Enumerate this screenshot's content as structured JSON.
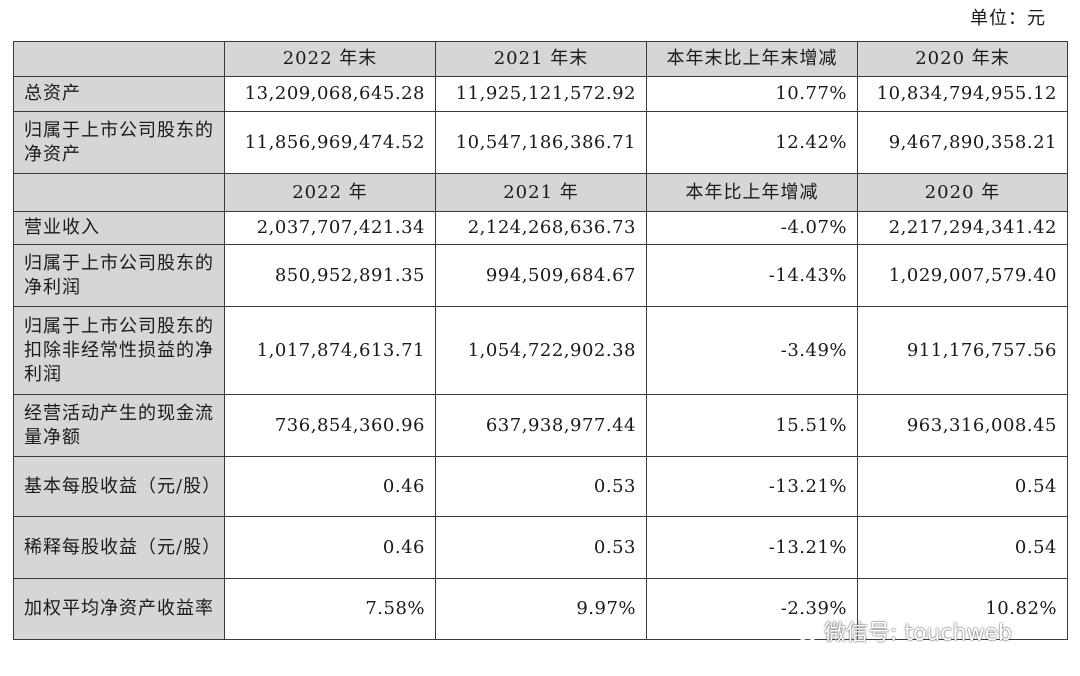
{
  "unit_label": "单位：元",
  "header1": [
    "2022 年末",
    "2021 年末",
    "本年末比上年末增减",
    "2020 年末"
  ],
  "header2": [
    "2022 年",
    "2021 年",
    "本年比上年增减",
    "2020 年"
  ],
  "rows": [
    {
      "label": "总资产",
      "values": [
        "13,209,068,645.28",
        "11,925,121,572.92",
        "10.77%",
        "10,834,794,955.12"
      ]
    },
    {
      "label": "归属于上市公司股东的净资产",
      "values": [
        "11,856,969,474.52",
        "10,547,186,386.71",
        "12.42%",
        "9,467,890,358.21"
      ]
    },
    {
      "label": "营业收入",
      "values": [
        "2,037,707,421.34",
        "2,124,268,636.73",
        "-4.07%",
        "2,217,294,341.42"
      ]
    },
    {
      "label": "归属于上市公司股东的净利润",
      "values": [
        "850,952,891.35",
        "994,509,684.67",
        "-14.43%",
        "1,029,007,579.40"
      ]
    },
    {
      "label": "归属于上市公司股东的扣除非经常性损益的净利润",
      "values": [
        "1,017,874,613.71",
        "1,054,722,902.38",
        "-3.49%",
        "911,176,757.56"
      ]
    },
    {
      "label": "经营活动产生的现金流量净额",
      "values": [
        "736,854,360.96",
        "637,938,977.44",
        "15.51%",
        "963,316,008.45"
      ]
    },
    {
      "label": "基本每股收益（元/股）",
      "values": [
        "0.46",
        "0.53",
        "-13.21%",
        "0.54"
      ]
    },
    {
      "label": "稀释每股收益（元/股）",
      "values": [
        "0.46",
        "0.53",
        "-13.21%",
        "0.54"
      ]
    },
    {
      "label": "加权平均净资产收益率",
      "values": [
        "7.58%",
        "9.97%",
        "-2.39%",
        "10.82%"
      ]
    }
  ],
  "watermark": {
    "text": "微信号: touchweb",
    "icon": "wechat-icon"
  }
}
